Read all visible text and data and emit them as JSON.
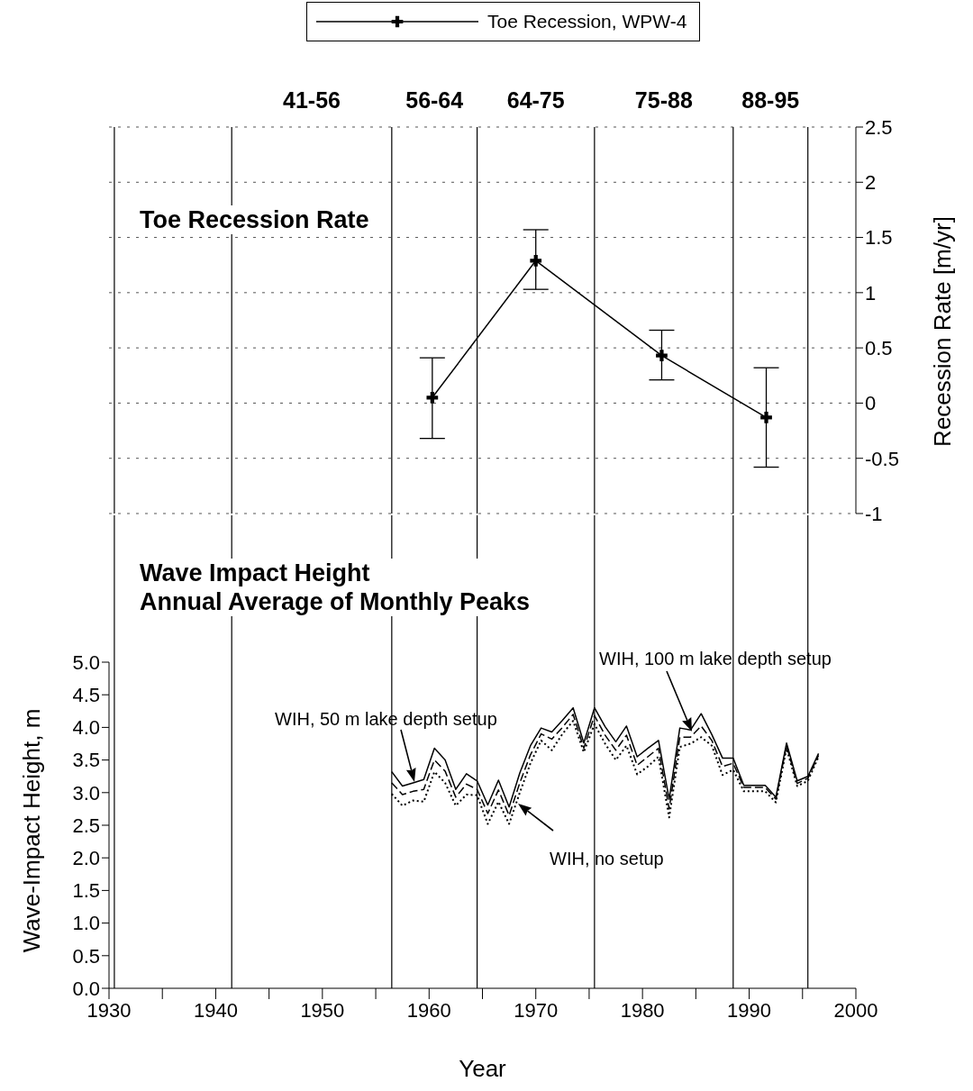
{
  "chart_data": [
    {
      "type": "line",
      "title": "Toe Recession Rate",
      "ylabel": "Recession Rate [m/yr]",
      "x": [
        1960.3,
        1970,
        1981.8,
        1991.6
      ],
      "series": [
        {
          "name": "Toe Recession, WPW-4",
          "color": "#000000",
          "values": [
            0.05,
            1.29,
            0.43,
            -0.13
          ],
          "errors": [
            [
              -0.32,
              0.41
            ],
            [
              1.03,
              1.57
            ],
            [
              0.21,
              0.66
            ],
            [
              -0.58,
              0.32
            ]
          ]
        }
      ],
      "xlim": [
        1930,
        2000
      ],
      "ylim": [
        -1,
        2.5
      ],
      "yticks": [
        -1,
        -0.5,
        0,
        0.5,
        1,
        1.5,
        2,
        2.5
      ],
      "tick_labels": "y",
      "grid": "y",
      "legend": "top",
      "marker": "cross",
      "line_style": "solid",
      "ref_lines": [
        {
          "axis": "x",
          "value": 1930.5
        },
        {
          "axis": "x",
          "value": 1941.5
        },
        {
          "axis": "x",
          "value": 1956.5
        },
        {
          "axis": "x",
          "value": 1964.5
        },
        {
          "axis": "x",
          "value": 1975.5
        },
        {
          "axis": "x",
          "value": 1988.5
        },
        {
          "axis": "x",
          "value": 1995.5
        }
      ],
      "annotations": [
        "41-56",
        "56-64",
        "64-75",
        "75-88",
        "88-95"
      ]
    },
    {
      "type": "line",
      "title": "Wave Impact Height",
      "subtitle": "Annual Average of Monthly Peaks",
      "xlabel": "Year",
      "ylabel": "Wave-Impact Height, m",
      "x": [
        1956.5,
        1957.5,
        1958.5,
        1959.5,
        1960.5,
        1961.5,
        1962.5,
        1963.5,
        1964.5,
        1965.5,
        1966.5,
        1967.5,
        1968.5,
        1969.5,
        1970.5,
        1971.5,
        1972.5,
        1973.5,
        1974.5,
        1975.5,
        1976.5,
        1977.5,
        1978.5,
        1979.5,
        1980.5,
        1981.5,
        1982.5,
        1983.5,
        1984.5,
        1985.5,
        1986.5,
        1987.5,
        1988.5,
        1989.5,
        1990.5,
        1991.5,
        1992.5,
        1993.5,
        1994.5,
        1995.5,
        1996.5
      ],
      "series": [
        {
          "name": "WIH, 100 m lake depth setup",
          "color": "#000000",
          "line_style": "solid",
          "values": [
            3.32,
            3.1,
            3.15,
            3.2,
            3.68,
            3.5,
            3.05,
            3.29,
            3.18,
            2.81,
            3.19,
            2.78,
            3.3,
            3.72,
            3.99,
            3.93,
            4.11,
            4.3,
            3.76,
            4.3,
            4.01,
            3.78,
            4.02,
            3.55,
            3.68,
            3.8,
            2.9,
            3.99,
            3.96,
            4.21,
            3.89,
            3.53,
            3.53,
            3.11,
            3.11,
            3.11,
            2.93,
            3.76,
            3.18,
            3.25,
            3.6
          ]
        },
        {
          "name": "WIH, 50 m lake depth setup",
          "color": "#000000",
          "line_style": "dashed",
          "values": [
            3.15,
            2.97,
            3.02,
            3.05,
            3.5,
            3.33,
            2.93,
            3.13,
            3.05,
            2.68,
            3.04,
            2.65,
            3.15,
            3.58,
            3.9,
            3.82,
            4.0,
            4.2,
            3.68,
            4.18,
            3.88,
            3.65,
            3.88,
            3.42,
            3.55,
            3.68,
            2.75,
            3.85,
            3.85,
            4.02,
            3.8,
            3.4,
            3.45,
            3.08,
            3.08,
            3.08,
            2.9,
            3.72,
            3.14,
            3.22,
            3.57
          ]
        },
        {
          "name": "WIH, no setup",
          "color": "#000000",
          "line_style": "dotted",
          "values": [
            2.98,
            2.8,
            2.88,
            2.86,
            3.32,
            3.15,
            2.8,
            2.97,
            2.96,
            2.52,
            2.86,
            2.52,
            3.0,
            3.45,
            3.8,
            3.65,
            3.9,
            4.1,
            3.62,
            4.05,
            3.75,
            3.5,
            3.72,
            3.28,
            3.4,
            3.55,
            2.62,
            3.7,
            3.75,
            3.85,
            3.72,
            3.27,
            3.35,
            3.02,
            3.02,
            3.02,
            2.85,
            3.68,
            3.1,
            3.18,
            3.55
          ]
        }
      ],
      "xlim": [
        1930,
        2000
      ],
      "xticks": [
        1930,
        {
          "value": 1935,
          "label": null
        },
        1940,
        {
          "value": 1945,
          "label": null
        },
        1950,
        {
          "value": 1955,
          "label": null
        },
        1960,
        {
          "value": 1965,
          "label": null
        },
        1970,
        {
          "value": 1975,
          "label": null
        },
        1980,
        {
          "value": 1985,
          "label": null
        },
        1990,
        {
          "value": 1995,
          "label": null
        },
        2000
      ],
      "ylim": [
        0,
        5
      ],
      "yticks": [
        {
          "value": 0,
          "label": "0.0"
        },
        {
          "value": 0.5,
          "label": "0.5"
        },
        {
          "value": 1,
          "label": "1.0"
        },
        {
          "value": 1.5,
          "label": "1.5"
        },
        {
          "value": 2,
          "label": "2.0"
        },
        {
          "value": 2.5,
          "label": "2.5"
        },
        {
          "value": 3,
          "label": "3.0"
        },
        {
          "value": 3.5,
          "label": "3.5"
        },
        {
          "value": 4,
          "label": "4.0"
        },
        {
          "value": 4.5,
          "label": "4.5"
        },
        {
          "value": 5,
          "label": "5.0"
        }
      ],
      "ref_lines": [
        {
          "axis": "x",
          "value": 1930.5
        },
        {
          "axis": "x",
          "value": 1941.5
        },
        {
          "axis": "x",
          "value": 1956.5
        },
        {
          "axis": "x",
          "value": 1964.5
        },
        {
          "axis": "x",
          "value": 1975.5
        },
        {
          "axis": "x",
          "value": 1988.5
        },
        {
          "axis": "x",
          "value": 1995.5
        }
      ]
    }
  ]
}
